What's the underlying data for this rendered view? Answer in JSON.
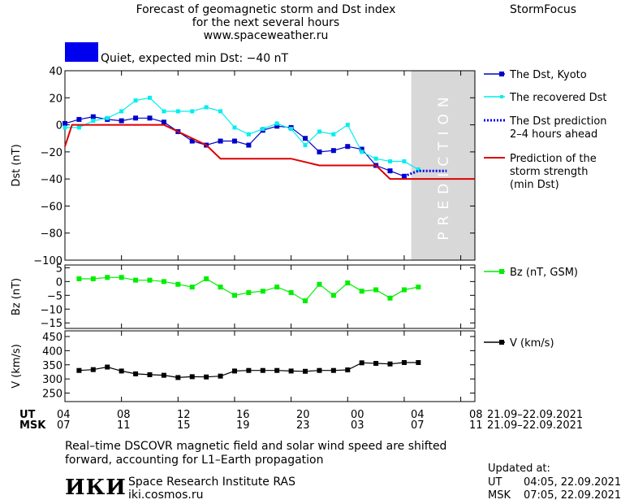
{
  "header": {
    "title_lines": [
      "Forecast of geomagnetic storm and Dst index",
      "for the next several hours",
      "www.spaceweather.ru"
    ],
    "brand": "StormFocus",
    "status_color": "#0000ee",
    "status_text": "Quiet, expected min Dst: −40 nT"
  },
  "prediction_label": "PREDICTION",
  "time_axis": {
    "ticks": [
      {
        "ut": "04",
        "msk": "07"
      },
      {
        "ut": "08",
        "msk": "11"
      },
      {
        "ut": "12",
        "msk": "15"
      },
      {
        "ut": "16",
        "msk": "19"
      },
      {
        "ut": "20",
        "msk": "23"
      },
      {
        "ut": "00",
        "msk": "03"
      },
      {
        "ut": "04",
        "msk": "07"
      },
      {
        "ut": "08",
        "msk": "11"
      }
    ],
    "ut_label": "UT",
    "msk_label": "MSK",
    "date_range_ut": "21.09–22.09.2021",
    "date_range_msk": "21.09–22.09.2021"
  },
  "chart_data": [
    {
      "type": "line",
      "ylabel": "Dst (nT)",
      "ylim": [
        -100,
        40
      ],
      "yticks": [
        40,
        20,
        0,
        -20,
        -40,
        -60,
        -80,
        -100
      ],
      "xlim": [
        0,
        29
      ],
      "prediction_region": [
        24.5,
        29
      ],
      "series": [
        {
          "name": "The Dst, Kyoto",
          "color": "#0000cc",
          "x": [
            0,
            1,
            2,
            3,
            4,
            5,
            6,
            7,
            8,
            9,
            10,
            11,
            12,
            13,
            14,
            15,
            16,
            17,
            18,
            19,
            20,
            21,
            22,
            23,
            24
          ],
          "y": [
            1,
            4,
            6,
            4,
            3,
            5,
            5,
            2,
            -5,
            -12,
            -15,
            -12,
            -12,
            -15,
            -4,
            -1,
            -2,
            -10,
            -20,
            -19,
            -16,
            -18,
            -30,
            -34,
            -38
          ]
        },
        {
          "name": "The recovered Dst",
          "color": "#00eeee",
          "x": [
            0,
            1,
            2,
            3,
            4,
            5,
            6,
            7,
            8,
            9,
            10,
            11,
            12,
            13,
            14,
            15,
            16,
            17,
            18,
            19,
            20,
            21,
            22,
            23,
            24,
            25
          ],
          "y": [
            -2,
            -2,
            3,
            5,
            10,
            18,
            20,
            10,
            10,
            10,
            13,
            10,
            -2,
            -7,
            -3,
            1,
            -3,
            -15,
            -5,
            -7,
            0,
            -20,
            -25,
            -27,
            -27,
            -33
          ]
        },
        {
          "name": "The Dst prediction 2–4 hours ahead",
          "color": "#0000ee",
          "style": "dotted",
          "x": [
            24,
            25,
            26,
            27
          ],
          "y": [
            -38,
            -34,
            -34,
            -34
          ]
        },
        {
          "name": "Prediction of the storm strength (min Dst)",
          "color": "#dd0000",
          "x": [
            0,
            0.5,
            1,
            6,
            7,
            8,
            10,
            11,
            15,
            16,
            18,
            22,
            23,
            29
          ],
          "y": [
            -16,
            0,
            0,
            0,
            0,
            -5,
            -15,
            -25,
            -25,
            -25,
            -30,
            -30,
            -40,
            -40
          ]
        }
      ]
    },
    {
      "type": "line",
      "ylabel": "Bz (nT)",
      "ylim": [
        -17,
        6
      ],
      "yticks": [
        5,
        0,
        -5,
        -10,
        -15
      ],
      "xlim": [
        0,
        29
      ],
      "series": [
        {
          "name": "Bz (nT, GSM)",
          "color": "#00ee00",
          "x": [
            1,
            2,
            3,
            4,
            5,
            6,
            7,
            8,
            9,
            10,
            11,
            12,
            13,
            14,
            15,
            16,
            17,
            18,
            19,
            20,
            21,
            22,
            23,
            24,
            25
          ],
          "y": [
            1,
            1,
            1.5,
            1.5,
            0.5,
            0.5,
            0,
            -1,
            -2,
            1,
            -2,
            -5,
            -4,
            -3.5,
            -2,
            -4,
            -7,
            -1,
            -5,
            -0.5,
            -3.5,
            -3,
            -6,
            -3,
            -2
          ]
        }
      ]
    },
    {
      "type": "line",
      "ylabel": "V (km/s)",
      "ylim": [
        220,
        470
      ],
      "yticks": [
        450,
        400,
        350,
        300,
        250
      ],
      "xlim": [
        0,
        29
      ],
      "series": [
        {
          "name": "V (km/s)",
          "color": "#000000",
          "x": [
            1,
            2,
            3,
            4,
            5,
            6,
            7,
            8,
            9,
            10,
            11,
            12,
            13,
            14,
            15,
            16,
            17,
            18,
            19,
            20,
            21,
            22,
            23,
            24,
            25
          ],
          "y": [
            330,
            333,
            342,
            328,
            318,
            315,
            313,
            305,
            308,
            307,
            310,
            328,
            330,
            330,
            330,
            328,
            327,
            330,
            330,
            332,
            357,
            355,
            353,
            358,
            358
          ]
        }
      ]
    }
  ],
  "footer": {
    "note_lines": [
      "Real–time DSCOVR magnetic field and solar wind speed are shifted",
      "forward, accounting for L1–Earth propagation"
    ],
    "logo": "ИКИ",
    "institute": "Space Research Institute RAS",
    "site": "iki.cosmos.ru",
    "updated_label": "Updated at:",
    "updated_ut_label": "UT",
    "updated_ut_value": "04:05, 22.09.2021",
    "updated_msk_label": "MSK",
    "updated_msk_value": "07:05, 22.09.2021"
  }
}
